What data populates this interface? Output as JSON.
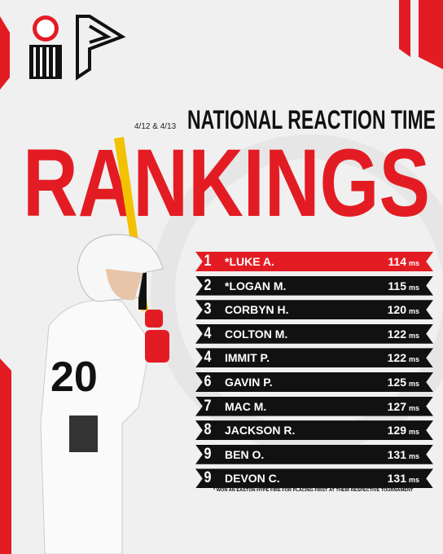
{
  "header": {
    "date": "4/12 & 4/13",
    "subtitle": "NATIONAL REACTION TIME",
    "title": "RANKINGS"
  },
  "unit": "ms",
  "rankings": [
    {
      "rank": 1,
      "name": "*LUKE A.",
      "time": 114
    },
    {
      "rank": 2,
      "name": "*LOGAN M.",
      "time": 115
    },
    {
      "rank": 3,
      "name": "CORBYN H.",
      "time": 120
    },
    {
      "rank": 4,
      "name": "COLTON M.",
      "time": 122
    },
    {
      "rank": 4,
      "name": "IMMIT P.",
      "time": 122
    },
    {
      "rank": 6,
      "name": "GAVIN P.",
      "time": 125
    },
    {
      "rank": 7,
      "name": "MAC M.",
      "time": 127
    },
    {
      "rank": 8,
      "name": "JACKSON R.",
      "time": 129
    },
    {
      "rank": 9,
      "name": "BEN O.",
      "time": 131
    },
    {
      "rank": 9,
      "name": "DEVON C.",
      "time": 131
    }
  ],
  "footnote": "* WON AN EASTON HYPE FIRE FOR PLACING FIRST AT THEIR RESPECTIVE TOURNAMENT"
}
